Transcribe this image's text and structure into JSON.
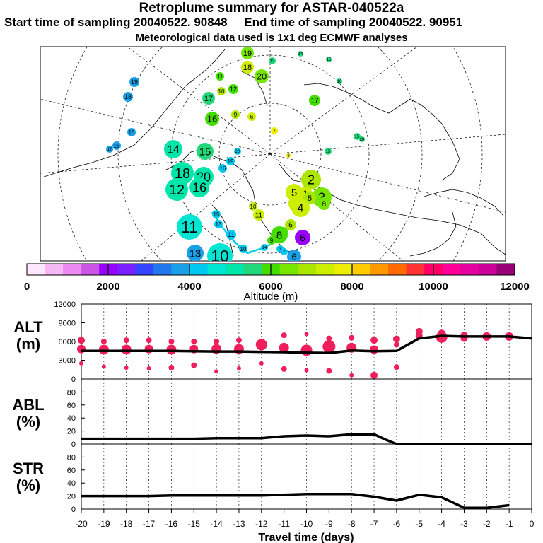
{
  "header": {
    "title": "Retroplume summary for ASTAR-040522a",
    "start_label": "Start time of sampling 20040522. 90848",
    "end_label": "End time of sampling 20040522. 90951",
    "met_note": "Meteorological data used is 1x1 deg ECMWF analyses"
  },
  "colorbar": {
    "ticks": [
      "0",
      "2000",
      "4000",
      "6000",
      "8000",
      "10000",
      "12000"
    ],
    "xlabel": "Altitude (m)",
    "colors": [
      "#ffe6ff",
      "#f5b8f5",
      "#eb8af0",
      "#cc55e6",
      "#9900ff",
      "#7a1fff",
      "#3344ff",
      "#2277ee",
      "#1aa0e6",
      "#00c8f0",
      "#00e6d2",
      "#00e6aa",
      "#22d77a",
      "#44dd00",
      "#77e600",
      "#aae600",
      "#ccee00",
      "#eeee00",
      "#ffcc00",
      "#ff9900",
      "#ff6a00",
      "#ff3333",
      "#ff0066",
      "#ff0099",
      "#e6009e",
      "#cc0099",
      "#990077"
    ]
  },
  "map": {
    "labels": [
      {
        "t": "19",
        "x": 350,
        "y": 75,
        "r": 9,
        "c": "#77e600"
      },
      {
        "t": "18",
        "x": 350,
        "y": 95,
        "r": 9,
        "c": "#ccee00"
      },
      {
        "t": "20",
        "x": 370,
        "y": 108,
        "r": 10,
        "c": "#77e600"
      },
      {
        "t": "13",
        "x": 385,
        "y": 86,
        "r": 5,
        "c": "#22d77a"
      },
      {
        "t": "14",
        "x": 425,
        "y": 76,
        "r": 4,
        "c": "#22d77a"
      },
      {
        "t": "15",
        "x": 465,
        "y": 84,
        "r": 4,
        "c": "#22d77a"
      },
      {
        "t": "16",
        "x": 480,
        "y": 115,
        "r": 4,
        "c": "#22d77a"
      },
      {
        "t": "11",
        "x": 311,
        "y": 108,
        "r": 6,
        "c": "#44dd00"
      },
      {
        "t": "10",
        "x": 313,
        "y": 129,
        "r": 6,
        "c": "#aae600"
      },
      {
        "t": "12",
        "x": 330,
        "y": 126,
        "r": 7,
        "c": "#44dd00"
      },
      {
        "t": "17",
        "x": 295,
        "y": 139,
        "r": 9,
        "c": "#22d77a"
      },
      {
        "t": "17",
        "x": 445,
        "y": 142,
        "r": 8,
        "c": "#44dd00"
      },
      {
        "t": "16",
        "x": 300,
        "y": 168,
        "r": 10,
        "c": "#44dd00"
      },
      {
        "t": "9",
        "x": 333,
        "y": 162,
        "r": 6,
        "c": "#aae600"
      },
      {
        "t": "6",
        "x": 356,
        "y": 165,
        "r": 6,
        "c": "#ccee00"
      },
      {
        "t": "7",
        "x": 388,
        "y": 185,
        "r": 5,
        "c": "#eeee00"
      },
      {
        "t": "15",
        "x": 505,
        "y": 193,
        "r": 5,
        "c": "#22d77a"
      },
      {
        "t": "20",
        "x": 512,
        "y": 197,
        "r": 4,
        "c": "#22d77a"
      },
      {
        "t": "15",
        "x": 464,
        "y": 214,
        "r": 5,
        "c": "#22d77a"
      },
      {
        "t": "8",
        "x": 408,
        "y": 220,
        "r": 3,
        "c": "#eeee00"
      },
      {
        "t": "19",
        "x": 190,
        "y": 116,
        "r": 7,
        "c": "#1aa0e6"
      },
      {
        "t": "18",
        "x": 181,
        "y": 137,
        "r": 7,
        "c": "#1aa0e6"
      },
      {
        "t": "15",
        "x": 186,
        "y": 187,
        "r": 6,
        "c": "#1aa0e6"
      },
      {
        "t": "16",
        "x": 165,
        "y": 206,
        "r": 6,
        "c": "#1aa0e6"
      },
      {
        "t": "17",
        "x": 155,
        "y": 211,
        "r": 5,
        "c": "#1aa0e6"
      },
      {
        "t": "14",
        "x": 245,
        "y": 211,
        "r": 13,
        "c": "#00e6aa"
      },
      {
        "t": "15",
        "x": 290,
        "y": 214,
        "r": 12,
        "c": "#22d77a"
      },
      {
        "t": "20",
        "x": 336,
        "y": 214,
        "r": 5,
        "c": "#00c8f0"
      },
      {
        "t": "19",
        "x": 326,
        "y": 228,
        "r": 6,
        "c": "#00c8f0"
      },
      {
        "t": "16",
        "x": 315,
        "y": 238,
        "r": 6,
        "c": "#00c8f0"
      },
      {
        "t": "18",
        "x": 258,
        "y": 245,
        "r": 16,
        "c": "#00e6aa"
      },
      {
        "t": "20",
        "x": 288,
        "y": 250,
        "r": 14,
        "c": "#00e6aa"
      },
      {
        "t": "12",
        "x": 250,
        "y": 268,
        "r": 16,
        "c": "#00e6aa"
      },
      {
        "t": "16",
        "x": 282,
        "y": 265,
        "r": 14,
        "c": "#00e6aa"
      },
      {
        "t": "11",
        "x": 268,
        "y": 321,
        "r": 18,
        "c": "#00e6d2"
      },
      {
        "t": "15",
        "x": 306,
        "y": 303,
        "r": 6,
        "c": "#00c8f0"
      },
      {
        "t": "13",
        "x": 309,
        "y": 317,
        "r": 6,
        "c": "#00c8f0"
      },
      {
        "t": "11",
        "x": 327,
        "y": 332,
        "r": 7,
        "c": "#00c8f0"
      },
      {
        "t": "13",
        "x": 276,
        "y": 358,
        "r": 12,
        "c": "#1aa0e6"
      },
      {
        "t": "10",
        "x": 311,
        "y": 362,
        "r": 18,
        "c": "#00e6d2"
      },
      {
        "t": "10",
        "x": 344,
        "y": 352,
        "r": 6,
        "c": "#00c8f0"
      },
      {
        "t": "10",
        "x": 358,
        "y": 292,
        "r": 6,
        "c": "#ccee00"
      },
      {
        "t": "11",
        "x": 366,
        "y": 304,
        "r": 8,
        "c": "#ccee00"
      },
      {
        "t": "2",
        "x": 440,
        "y": 254,
        "r": 14,
        "c": "#aae600"
      },
      {
        "t": "5",
        "x": 416,
        "y": 272,
        "r": 12,
        "c": "#ccee00"
      },
      {
        "t": "1",
        "x": 432,
        "y": 274,
        "r": 10,
        "c": "#ccee00"
      },
      {
        "t": "3",
        "x": 455,
        "y": 279,
        "r": 14,
        "c": "#77e600"
      },
      {
        "t": "5",
        "x": 438,
        "y": 280,
        "r": 9,
        "c": "#aae600"
      },
      {
        "t": "2",
        "x": 420,
        "y": 288,
        "r": 12,
        "c": "#ccee00"
      },
      {
        "t": "4",
        "x": 425,
        "y": 294,
        "r": 13,
        "c": "#ccee00"
      },
      {
        "t": "8",
        "x": 458,
        "y": 288,
        "r": 9,
        "c": "#77e600"
      },
      {
        "t": "6",
        "x": 411,
        "y": 318,
        "r": 8,
        "c": "#aae600"
      },
      {
        "t": "5",
        "x": 400,
        "y": 328,
        "r": 7,
        "c": "#44dd00"
      },
      {
        "t": "8",
        "x": 395,
        "y": 332,
        "r": 12,
        "c": "#44dd00"
      },
      {
        "t": "6",
        "x": 428,
        "y": 336,
        "r": 11,
        "c": "#9900ff"
      },
      {
        "t": "9",
        "x": 384,
        "y": 340,
        "r": 6,
        "c": "#44dd00"
      },
      {
        "t": "3",
        "x": 396,
        "y": 352,
        "r": 5,
        "c": "#00c8f0"
      },
      {
        "t": "7",
        "x": 402,
        "y": 356,
        "r": 5,
        "c": "#00c8f0"
      },
      {
        "t": "14",
        "x": 374,
        "y": 350,
        "r": 5,
        "c": "#00c8f0"
      },
      {
        "t": "6",
        "x": 416,
        "y": 363,
        "r": 10,
        "c": "#1aa0e6"
      }
    ]
  },
  "chart_data": [
    {
      "type": "scatter",
      "panel": "ALT",
      "ylabel": "ALT\n(m)",
      "xlim": [
        -20,
        0
      ],
      "ylim": [
        0,
        12000
      ],
      "yticks": [
        0,
        3000,
        6000,
        9000,
        12000
      ],
      "mean_line": {
        "x": [
          -20,
          -19,
          -18,
          -17,
          -16,
          -15,
          -14,
          -13,
          -12,
          -11,
          -10,
          -9,
          -8,
          -7,
          -6,
          -5,
          -4,
          -3,
          -2,
          -1,
          0
        ],
        "y": [
          4500,
          4500,
          4500,
          4500,
          4500,
          4450,
          4400,
          4400,
          4350,
          4300,
          4200,
          4150,
          4550,
          4450,
          4500,
          6500,
          6900,
          6800,
          6800,
          6800,
          6500
        ]
      },
      "points": [
        {
          "x": -20,
          "y": 6200,
          "s": 5
        },
        {
          "x": -20,
          "y": 4800,
          "s": 6
        },
        {
          "x": -20,
          "y": 2500,
          "s": 3
        },
        {
          "x": -19,
          "y": 6000,
          "s": 4
        },
        {
          "x": -19,
          "y": 4700,
          "s": 7
        },
        {
          "x": -19,
          "y": 2000,
          "s": 3
        },
        {
          "x": -18,
          "y": 6200,
          "s": 4
        },
        {
          "x": -18,
          "y": 4700,
          "s": 7
        },
        {
          "x": -18,
          "y": 1800,
          "s": 3
        },
        {
          "x": -17,
          "y": 6200,
          "s": 4
        },
        {
          "x": -17,
          "y": 4800,
          "s": 6
        },
        {
          "x": -17,
          "y": 1700,
          "s": 3
        },
        {
          "x": -16,
          "y": 6000,
          "s": 4
        },
        {
          "x": -16,
          "y": 4700,
          "s": 7
        },
        {
          "x": -16,
          "y": 1800,
          "s": 4
        },
        {
          "x": -15,
          "y": 6000,
          "s": 4
        },
        {
          "x": -15,
          "y": 4800,
          "s": 6
        },
        {
          "x": -15,
          "y": 2200,
          "s": 4
        },
        {
          "x": -14,
          "y": 6000,
          "s": 4
        },
        {
          "x": -14,
          "y": 4800,
          "s": 7
        },
        {
          "x": -14,
          "y": 1200,
          "s": 3
        },
        {
          "x": -13,
          "y": 6200,
          "s": 4
        },
        {
          "x": -13,
          "y": 4800,
          "s": 7
        },
        {
          "x": -13,
          "y": 1700,
          "s": 3
        },
        {
          "x": -12,
          "y": 6000,
          "s": 4
        },
        {
          "x": -12,
          "y": 5500,
          "s": 8
        },
        {
          "x": -12,
          "y": 2500,
          "s": 3
        },
        {
          "x": -11,
          "y": 7000,
          "s": 4
        },
        {
          "x": -11,
          "y": 5000,
          "s": 7
        },
        {
          "x": -11,
          "y": 1600,
          "s": 4
        },
        {
          "x": -10,
          "y": 7200,
          "s": 3
        },
        {
          "x": -10,
          "y": 4600,
          "s": 8
        },
        {
          "x": -10,
          "y": 1400,
          "s": 3
        },
        {
          "x": -9,
          "y": 6500,
          "s": 4
        },
        {
          "x": -9,
          "y": 5200,
          "s": 9
        },
        {
          "x": -9,
          "y": 1300,
          "s": 4
        },
        {
          "x": -8,
          "y": 6600,
          "s": 4
        },
        {
          "x": -8,
          "y": 5000,
          "s": 7
        },
        {
          "x": -8,
          "y": 600,
          "s": 3
        },
        {
          "x": -7,
          "y": 6200,
          "s": 5
        },
        {
          "x": -7,
          "y": 4700,
          "s": 6
        },
        {
          "x": -7,
          "y": 600,
          "s": 5
        },
        {
          "x": -6,
          "y": 6400,
          "s": 5
        },
        {
          "x": -6,
          "y": 5500,
          "s": 4
        },
        {
          "x": -6,
          "y": 1900,
          "s": 4
        },
        {
          "x": -5,
          "y": 7600,
          "s": 5
        },
        {
          "x": -5,
          "y": 6900,
          "s": 5
        },
        {
          "x": -4,
          "y": 7200,
          "s": 6
        },
        {
          "x": -4,
          "y": 6700,
          "s": 8
        },
        {
          "x": -3,
          "y": 7000,
          "s": 5
        },
        {
          "x": -3,
          "y": 6500,
          "s": 5
        },
        {
          "x": -2,
          "y": 6800,
          "s": 6
        },
        {
          "x": -1,
          "y": 6800,
          "s": 6
        }
      ]
    },
    {
      "type": "line",
      "panel": "ABL",
      "ylabel": "ABL\n(%)",
      "xlim": [
        -20,
        0
      ],
      "ylim": [
        0,
        100
      ],
      "yticks": [
        0,
        20,
        40,
        60,
        80
      ],
      "x": [
        -20,
        -19,
        -18,
        -17,
        -16,
        -15,
        -14,
        -13,
        -12,
        -11,
        -10,
        -9,
        -8,
        -7,
        -6.5,
        -6,
        -5,
        -4,
        -3,
        -2,
        -1,
        0
      ],
      "y": [
        8,
        8,
        8,
        8,
        8,
        8,
        9,
        9,
        9,
        12,
        13,
        12,
        15,
        15,
        7,
        0,
        0,
        0,
        0,
        0,
        0,
        0
      ]
    },
    {
      "type": "line",
      "panel": "STR",
      "ylabel": "STR\n(%)",
      "xlim": [
        -20,
        0
      ],
      "ylim": [
        0,
        100
      ],
      "yticks": [
        0,
        20,
        40,
        60,
        80
      ],
      "x": [
        -20,
        -19,
        -18,
        -17,
        -16,
        -15,
        -14,
        -13,
        -12,
        -11,
        -10,
        -9,
        -8,
        -7,
        -6,
        -5,
        -4,
        -3,
        -2,
        -1
      ],
      "y": [
        20,
        20,
        20,
        20,
        21,
        21,
        21,
        21,
        21,
        22,
        23,
        23,
        23,
        19,
        13,
        22,
        18,
        2,
        2,
        6
      ]
    }
  ],
  "xaxis": {
    "tick_labels": [
      "-20",
      "-19",
      "-18",
      "-17",
      "-16",
      "-15",
      "-14",
      "-13",
      "-12",
      "-11",
      "-10",
      "-9",
      "-8",
      "-7",
      "-6",
      "-5",
      "-4",
      "-3",
      "-2",
      "-1",
      "0"
    ],
    "xlabel": "Travel time (days)"
  }
}
